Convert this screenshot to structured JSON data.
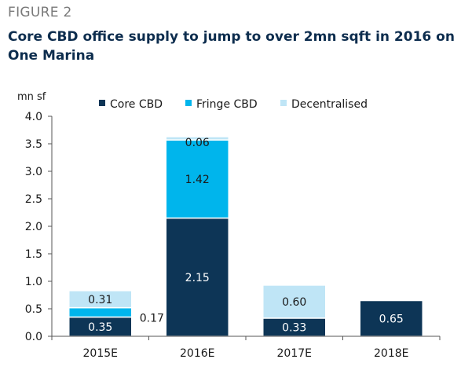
{
  "figure_label": "FIGURE 2",
  "title": "Core CBD office supply to jump to over 2mn sqft in 2016 on One Marina",
  "chart_data": {
    "type": "bar",
    "stacked": true,
    "categories": [
      "2015E",
      "2016E",
      "2017E",
      "2018E"
    ],
    "series": [
      {
        "name": "Core CBD",
        "color": "#0d3556",
        "label_color": "#ffffff",
        "values": [
          0.35,
          2.15,
          0.33,
          0.65
        ]
      },
      {
        "name": "Fringe CBD",
        "color": "#00b5ec",
        "label_color": "#1a1a1a",
        "values": [
          0.17,
          1.42,
          0,
          0
        ]
      },
      {
        "name": "Decentralised",
        "color": "#bfe5f6",
        "label_color": "#1a1a1a",
        "values": [
          0.31,
          0.06,
          0.6,
          0
        ]
      }
    ],
    "data_labels": [
      [
        "0.35",
        "2.15",
        "0.33",
        "0.65"
      ],
      [
        "0.17",
        "1.42",
        "",
        ""
      ],
      [
        "0.31",
        "0.06",
        "0.60",
        ""
      ]
    ],
    "ylabel": "mn sf",
    "ylim": [
      0,
      4.0
    ],
    "yticks": [
      "0.0",
      "0.5",
      "1.0",
      "1.5",
      "2.0",
      "2.5",
      "3.0",
      "3.5",
      "4.0"
    ],
    "ytick_values": [
      0,
      0.5,
      1.0,
      1.5,
      2.0,
      2.5,
      3.0,
      3.5,
      4.0
    ],
    "legend_position": "top",
    "grid": false
  }
}
